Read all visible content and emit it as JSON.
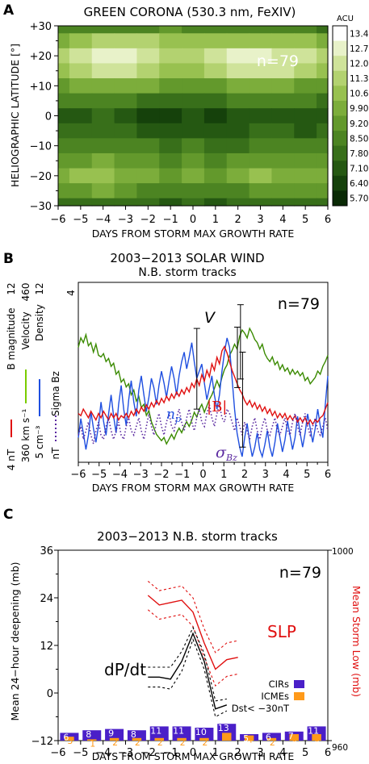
{
  "chart_data": [
    {
      "panel_letter": "A",
      "type": "heatmap",
      "title": "GREEN CORONA (530.3 nm, FeXIV)",
      "annotation": "n=79",
      "xlabel": "DAYS FROM STORM MAX GROWTH RATE",
      "ylabel": "HELIOGRAPHIC LATITUDE [°]",
      "x_ticks": [
        "−6",
        "−5",
        "−4",
        "−3",
        "−2",
        "−1",
        "0",
        "1",
        "2",
        "3",
        "4",
        "5",
        "6"
      ],
      "y_ticks": [
        "+30",
        "+20",
        "+10",
        "0",
        "−10",
        "−20",
        "−30"
      ],
      "xlim": [
        -6,
        6
      ],
      "ylim": [
        -30,
        30
      ],
      "colorbar_unit": "ACU",
      "colorbar_levels": [
        "13.4",
        "12.7",
        "12.0",
        "11.3",
        "10.6",
        "9.90",
        "9.20",
        "8.50",
        "7.80",
        "7.10",
        "6.40",
        "5.70"
      ],
      "colorbar_colors": [
        "#ffffff",
        "#e8f2c9",
        "#cfe39a",
        "#b3d270",
        "#98c150",
        "#7cad3b",
        "#63992c",
        "#4c8422",
        "#386f1a",
        "#255812",
        "#15410b",
        "#0a2a05"
      ],
      "x_days": [
        -6,
        -5,
        -4,
        -3,
        -2,
        -1,
        0,
        1,
        2,
        3,
        4,
        5,
        6
      ],
      "lat_rows": [
        30,
        25,
        20,
        15,
        10,
        5,
        0,
        -5,
        -10,
        -15,
        -20,
        -25,
        -30
      ],
      "values": [
        [
          8.5,
          8.6,
          8.8,
          9.0,
          9.1,
          9.2,
          9.0,
          8.9,
          8.8,
          8.7,
          8.6,
          8.5,
          8.4
        ],
        [
          10.2,
          10.8,
          11.3,
          11.6,
          11.3,
          10.9,
          10.6,
          10.9,
          11.2,
          11.0,
          10.8,
          10.6,
          10.4
        ],
        [
          11.4,
          12.4,
          13.2,
          13.3,
          12.6,
          11.8,
          11.5,
          12.0,
          12.8,
          13.0,
          12.5,
          12.1,
          11.6
        ],
        [
          10.9,
          11.8,
          12.5,
          12.6,
          11.8,
          11.0,
          10.9,
          11.4,
          12.2,
          12.6,
          12.0,
          11.5,
          11.0
        ],
        [
          9.4,
          9.9,
          10.2,
          10.2,
          9.9,
          9.5,
          9.3,
          9.6,
          10.0,
          10.3,
          10.1,
          9.8,
          9.5
        ],
        [
          8.6,
          8.7,
          8.8,
          8.6,
          8.4,
          8.2,
          8.1,
          8.3,
          8.6,
          8.8,
          8.7,
          8.5,
          8.4
        ],
        [
          7.6,
          7.7,
          7.8,
          7.3,
          7.0,
          6.9,
          7.1,
          7.0,
          7.4,
          7.7,
          7.6,
          7.4,
          7.3
        ],
        [
          7.9,
          8.1,
          8.2,
          7.8,
          7.5,
          7.3,
          7.5,
          7.3,
          7.6,
          7.9,
          7.8,
          7.7,
          7.8
        ],
        [
          8.6,
          8.9,
          9.0,
          8.8,
          8.5,
          8.3,
          8.5,
          8.2,
          8.4,
          8.7,
          8.6,
          8.6,
          8.7
        ],
        [
          9.4,
          9.7,
          9.9,
          9.7,
          9.3,
          9.0,
          9.3,
          9.0,
          9.2,
          9.6,
          9.5,
          9.4,
          9.5
        ],
        [
          10.1,
          10.6,
          10.8,
          10.5,
          9.9,
          9.5,
          9.9,
          9.6,
          9.9,
          10.6,
          10.3,
          10.0,
          10.0
        ],
        [
          9.4,
          9.7,
          9.9,
          9.6,
          9.1,
          8.8,
          9.1,
          8.8,
          9.1,
          9.6,
          9.4,
          9.2,
          9.2
        ],
        [
          8.0,
          8.2,
          8.3,
          8.1,
          7.8,
          7.6,
          7.8,
          7.6,
          7.8,
          8.1,
          8.0,
          7.9,
          7.9
        ]
      ]
    },
    {
      "panel_letter": "B",
      "type": "line",
      "title": "2003−2013 SOLAR WIND",
      "subtitle": "N.B. storm tracks",
      "annotation": "n=79",
      "xlabel": "DAYS FROM STORM MAX GROWTH RATE",
      "x_ticks": [
        "−6",
        "−5",
        "−4",
        "−3",
        "−2",
        "−1",
        "0",
        "1",
        "2",
        "3",
        "4",
        "5",
        "6"
      ],
      "xlim": [
        -6,
        6
      ],
      "left_axis_labels": {
        "b": [
          "B magnitude",
          "4 nT",
          "12"
        ],
        "v": [
          "Velocity",
          "360 km s⁻¹",
          "460"
        ],
        "n": [
          "Density",
          "5 cm⁻³",
          "12"
        ],
        "sigma": [
          "Sigma Bz",
          "nT",
          "4"
        ]
      },
      "curve_labels": {
        "v": "V",
        "n": "n",
        "n_sub": "p",
        "b": "|B|",
        "sigma": "σ",
        "sigma_sub": "Bz"
      },
      "series": [
        {
          "name": "Velocity",
          "color": "#3a8a00",
          "unit": "km s⁻¹",
          "range": [
            360,
            460
          ],
          "values": [
            425,
            431,
            428,
            433,
            426,
            428,
            422,
            427,
            420,
            419,
            421,
            416,
            418,
            413,
            415,
            408,
            410,
            403,
            405,
            400,
            402,
            395,
            398,
            391,
            394,
            387,
            389,
            382,
            385,
            378,
            374,
            370,
            368,
            366,
            368,
            364,
            367,
            370,
            367,
            371,
            374,
            371,
            375,
            378,
            375,
            379,
            384,
            381,
            386,
            389,
            384,
            388,
            392,
            395,
            399,
            404,
            400,
            406,
            411,
            414,
            420,
            423,
            427,
            424,
            432,
            436,
            434,
            431,
            437,
            434,
            430,
            428,
            424,
            427,
            421,
            418,
            416,
            419,
            414,
            416,
            411,
            414,
            410,
            412,
            408,
            411,
            408,
            410,
            407,
            409,
            404,
            406,
            402,
            404,
            406,
            410,
            408,
            413,
            416,
            420
          ]
        },
        {
          "name": "Density",
          "color": "#1f4fe0",
          "unit": "cm⁻³",
          "range": [
            5,
            12
          ],
          "values": [
            5.8,
            6.6,
            6.0,
            5.3,
            5.9,
            6.9,
            6.2,
            5.6,
            6.3,
            7.3,
            6.5,
            5.9,
            6.8,
            7.6,
            6.7,
            6.0,
            7.2,
            8.0,
            7.0,
            6.3,
            7.4,
            8.2,
            7.3,
            6.7,
            7.8,
            8.4,
            7.6,
            6.9,
            7.5,
            8.3,
            7.9,
            7.2,
            8.0,
            8.6,
            8.1,
            7.5,
            8.2,
            8.8,
            8.3,
            7.6,
            8.4,
            9.0,
            9.4,
            8.7,
            9.2,
            9.8,
            9.0,
            8.3,
            8.6,
            8.9,
            8.1,
            7.4,
            7.9,
            8.4,
            7.6,
            7.0,
            7.6,
            8.6,
            9.4,
            10.0,
            9.6,
            8.3,
            7.0,
            6.0,
            5.4,
            5.0,
            5.8,
            6.4,
            5.6,
            5.0,
            5.4,
            6.0,
            5.3,
            5.0,
            5.5,
            6.1,
            5.4,
            5.0,
            5.6,
            6.4,
            5.8,
            5.2,
            5.7,
            6.5,
            5.9,
            5.3,
            5.8,
            6.7,
            6.0,
            5.4,
            6.0,
            6.8,
            6.2,
            5.6,
            6.2,
            7.0,
            6.3,
            5.8,
            7.2,
            8.4
          ]
        },
        {
          "name": "B magnitude",
          "color": "#e01010",
          "unit": "nT",
          "range": [
            4,
            12
          ],
          "values": [
            6.0,
            5.9,
            6.2,
            6.0,
            5.8,
            6.1,
            5.9,
            5.7,
            6.0,
            5.8,
            6.1,
            5.9,
            5.7,
            6.0,
            5.8,
            6.0,
            5.7,
            5.9,
            5.8,
            6.0,
            5.8,
            6.1,
            5.9,
            6.2,
            6.0,
            6.3,
            6.1,
            6.4,
            6.2,
            6.5,
            6.3,
            6.6,
            6.4,
            6.7,
            6.5,
            6.8,
            6.6,
            6.9,
            6.7,
            7.0,
            6.8,
            7.1,
            6.9,
            7.2,
            7.0,
            7.4,
            7.2,
            7.6,
            7.3,
            7.8,
            7.5,
            8.0,
            7.7,
            8.3,
            8.0,
            8.6,
            8.3,
            8.9,
            9.1,
            8.8,
            8.4,
            8.0,
            7.7,
            7.4,
            7.1,
            6.9,
            6.6,
            6.4,
            6.6,
            6.3,
            6.5,
            6.2,
            6.4,
            6.1,
            6.3,
            6.0,
            6.2,
            5.9,
            6.1,
            5.8,
            6.0,
            5.8,
            6.0,
            5.7,
            5.9,
            5.7,
            5.9,
            5.6,
            5.8,
            5.6,
            5.8,
            5.5,
            5.7,
            5.5,
            5.7,
            5.6,
            5.8,
            5.9,
            6.2,
            6.5
          ]
        },
        {
          "name": "Sigma Bz",
          "color": "#5b2aa0",
          "unit": "nT",
          "range": [
            0,
            4
          ],
          "values": [
            0.5,
            0.7,
            0.4,
            0.6,
            0.8,
            0.5,
            0.3,
            0.6,
            0.8,
            0.5,
            0.4,
            0.7,
            0.9,
            0.6,
            0.4,
            0.6,
            0.8,
            0.5,
            0.4,
            0.7,
            0.9,
            0.6,
            0.5,
            0.7,
            0.9,
            0.6,
            0.4,
            0.7,
            1.0,
            0.7,
            0.5,
            0.8,
            1.0,
            0.7,
            0.5,
            0.8,
            1.0,
            0.7,
            0.6,
            0.9,
            1.1,
            0.8,
            0.6,
            0.9,
            1.1,
            0.8,
            0.6,
            0.9,
            1.1,
            0.8,
            0.7,
            1.0,
            1.2,
            0.9,
            0.7,
            1.0,
            1.2,
            0.9,
            0.8,
            1.1,
            1.0,
            0.8,
            0.6,
            0.9,
            0.7,
            0.5,
            0.8,
            0.6,
            0.4,
            0.7,
            0.9,
            0.6,
            0.4,
            0.7,
            0.9,
            0.6,
            0.5,
            0.7,
            0.9,
            0.6,
            0.5,
            0.7,
            0.9,
            0.6,
            0.5,
            0.8,
            1.0,
            0.7,
            0.5,
            0.8,
            1.0,
            0.7,
            0.5,
            0.7,
            0.9,
            0.6,
            0.5,
            0.7,
            0.9,
            0.6
          ]
        }
      ],
      "error_bars": [
        {
          "series": "Velocity",
          "x": 1.8,
          "low": 405,
          "high": 452
        },
        {
          "series": "Density",
          "x": -0.3,
          "low": 7.0,
          "high": 10.4
        },
        {
          "series": "B magnitude",
          "x": 1.65,
          "low": 7.2,
          "high": 10.0
        },
        {
          "series": "Density",
          "x": 1.9,
          "low": 5.4,
          "high": 9.4
        }
      ]
    },
    {
      "panel_letter": "C",
      "type": "bar",
      "title": "2003−2013 N.B. storm tracks",
      "annotation": "n=79",
      "xlabel": "DAYS FROM STORM MAX GROWTH RATE",
      "ylabel": "Mean 24−hour deepening (mb)",
      "y2label": "Mean Storm Low (mb)",
      "x_ticks": [
        "−6",
        "−5",
        "−4",
        "−3",
        "−2",
        "−1",
        "0",
        "1",
        "2",
        "3",
        "4",
        "5",
        "6"
      ],
      "y_ticks": [
        "36",
        "24",
        "12",
        "0",
        "−12"
      ],
      "y2_ticks": [
        "1000",
        "960"
      ],
      "xlim": [
        -6,
        6
      ],
      "ylim": [
        -12,
        36
      ],
      "y2lim": [
        960,
        1000
      ],
      "labels": {
        "slp": "SLP",
        "dpdt": "dP/dt"
      },
      "legend": [
        {
          "label": "CIRs",
          "color": "#4a1fc8"
        },
        {
          "label": "ICMEs",
          "color": "#ff9a1a"
        },
        {
          "label": "Dst< −30nT",
          "color": "#000000"
        }
      ],
      "bars": {
        "days": [
          -5.5,
          -4.5,
          -3.5,
          -2.5,
          -1.5,
          -0.5,
          0.5,
          1.5,
          2.5,
          3.5,
          4.5,
          5.5
        ],
        "cir_counts": [
          6,
          8,
          9,
          8,
          11,
          11,
          10,
          13,
          5,
          6,
          7,
          11
        ],
        "icme_counts": [
          3,
          1,
          2,
          2,
          2,
          2,
          2,
          6,
          4,
          2,
          5,
          5
        ]
      },
      "series": [
        {
          "name": "SLP",
          "color": "#e01010",
          "axis": "right",
          "x": [
            -2.0,
            -1.5,
            -1.0,
            -0.5,
            0.0,
            0.5,
            1.0,
            1.5,
            2.0
          ],
          "values": [
            990.5,
            988.5,
            989.0,
            989.5,
            987.0,
            980.5,
            975.0,
            977.0,
            977.5
          ],
          "upper": [
            993.5,
            991.5,
            992.0,
            992.5,
            990.0,
            983.5,
            978.5,
            980.5,
            981.0
          ],
          "lower": [
            987.5,
            985.5,
            986.0,
            986.5,
            984.0,
            977.5,
            971.5,
            973.5,
            974.0
          ]
        },
        {
          "name": "dP/dt",
          "color": "#000000",
          "axis": "left",
          "x": [
            -2.0,
            -1.5,
            -1.0,
            -0.5,
            0.0,
            0.5,
            1.0,
            1.5
          ],
          "values": [
            4.0,
            4.0,
            3.5,
            8.0,
            15.0,
            8.0,
            -4.0,
            -3.0
          ],
          "upper": [
            6.5,
            6.5,
            6.5,
            10.5,
            16.5,
            10.0,
            -2.0,
            -1.5
          ],
          "lower": [
            1.5,
            1.5,
            1.0,
            5.5,
            13.5,
            6.0,
            -6.0,
            -4.5
          ]
        }
      ]
    }
  ]
}
